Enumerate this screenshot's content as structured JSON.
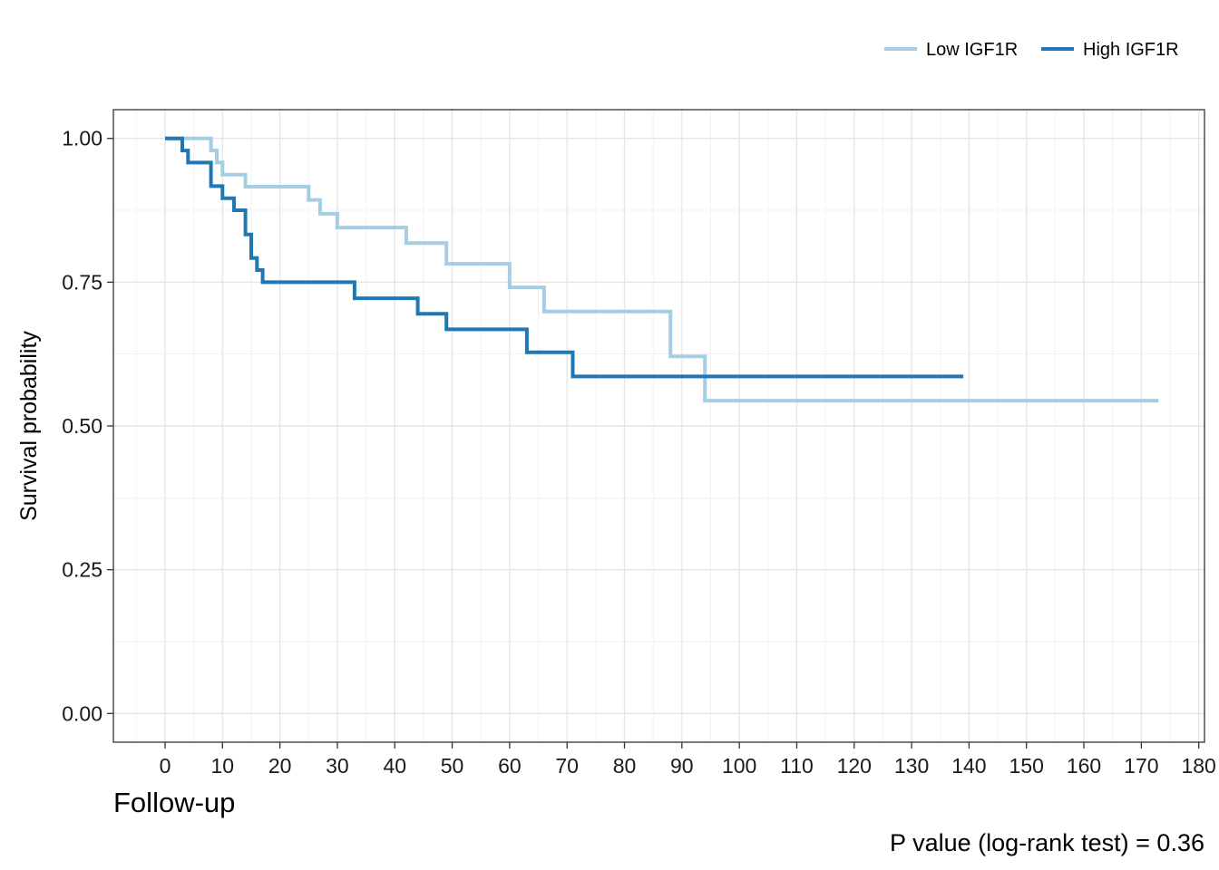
{
  "chart_data": {
    "type": "line",
    "step": true,
    "title": "",
    "xlabel": "Follow-up",
    "ylabel": "Survival probability",
    "xlim": [
      -9,
      181
    ],
    "ylim": [
      -0.05,
      1.05
    ],
    "x_ticks": [
      0,
      10,
      20,
      30,
      40,
      50,
      60,
      70,
      80,
      90,
      100,
      110,
      120,
      130,
      140,
      150,
      160,
      170,
      180
    ],
    "y_ticks": [
      0.0,
      0.25,
      0.5,
      0.75,
      1.0
    ],
    "y_tick_labels": [
      "0.00",
      "0.25",
      "0.50",
      "0.75",
      "1.00"
    ],
    "grid": true,
    "legend_position": "top-right",
    "annotation": "P value (log-rank test) = 0.36",
    "series": [
      {
        "name": "Low IGF1R",
        "color": "#a6cee3",
        "x": [
          0,
          8,
          9,
          10,
          14,
          25,
          27,
          30,
          42,
          49,
          60,
          66,
          88,
          94,
          173
        ],
        "y": [
          1.0,
          0.979,
          0.958,
          0.937,
          0.916,
          0.893,
          0.869,
          0.845,
          0.818,
          0.782,
          0.741,
          0.699,
          0.621,
          0.544,
          0.544
        ]
      },
      {
        "name": "High IGF1R",
        "color": "#1f78b4",
        "x": [
          0,
          3,
          4,
          8,
          10,
          12,
          14,
          15,
          16,
          17,
          33,
          44,
          49,
          63,
          71,
          139
        ],
        "y": [
          1.0,
          0.979,
          0.958,
          0.917,
          0.896,
          0.875,
          0.833,
          0.792,
          0.771,
          0.75,
          0.722,
          0.695,
          0.668,
          0.628,
          0.586,
          0.586
        ]
      }
    ]
  }
}
